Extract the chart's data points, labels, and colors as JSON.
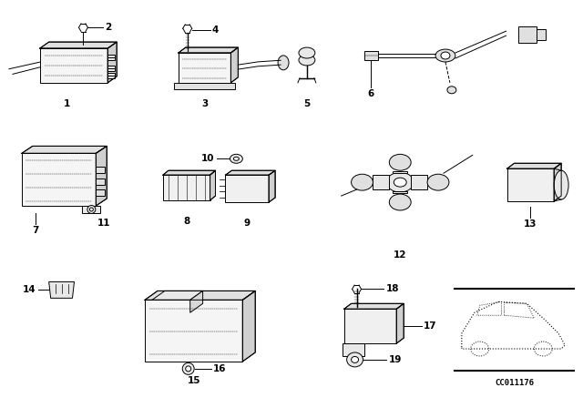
{
  "background_color": "#ffffff",
  "part_number": "CC011176",
  "fig_width": 6.4,
  "fig_height": 4.48,
  "dpi": 100,
  "lw": 0.7,
  "lw_thick": 1.0,
  "gray_fill": "#e8e8e8",
  "white": "#ffffff",
  "black": "#000000",
  "label_fontsize": 7.5,
  "label_fontweight": "bold"
}
